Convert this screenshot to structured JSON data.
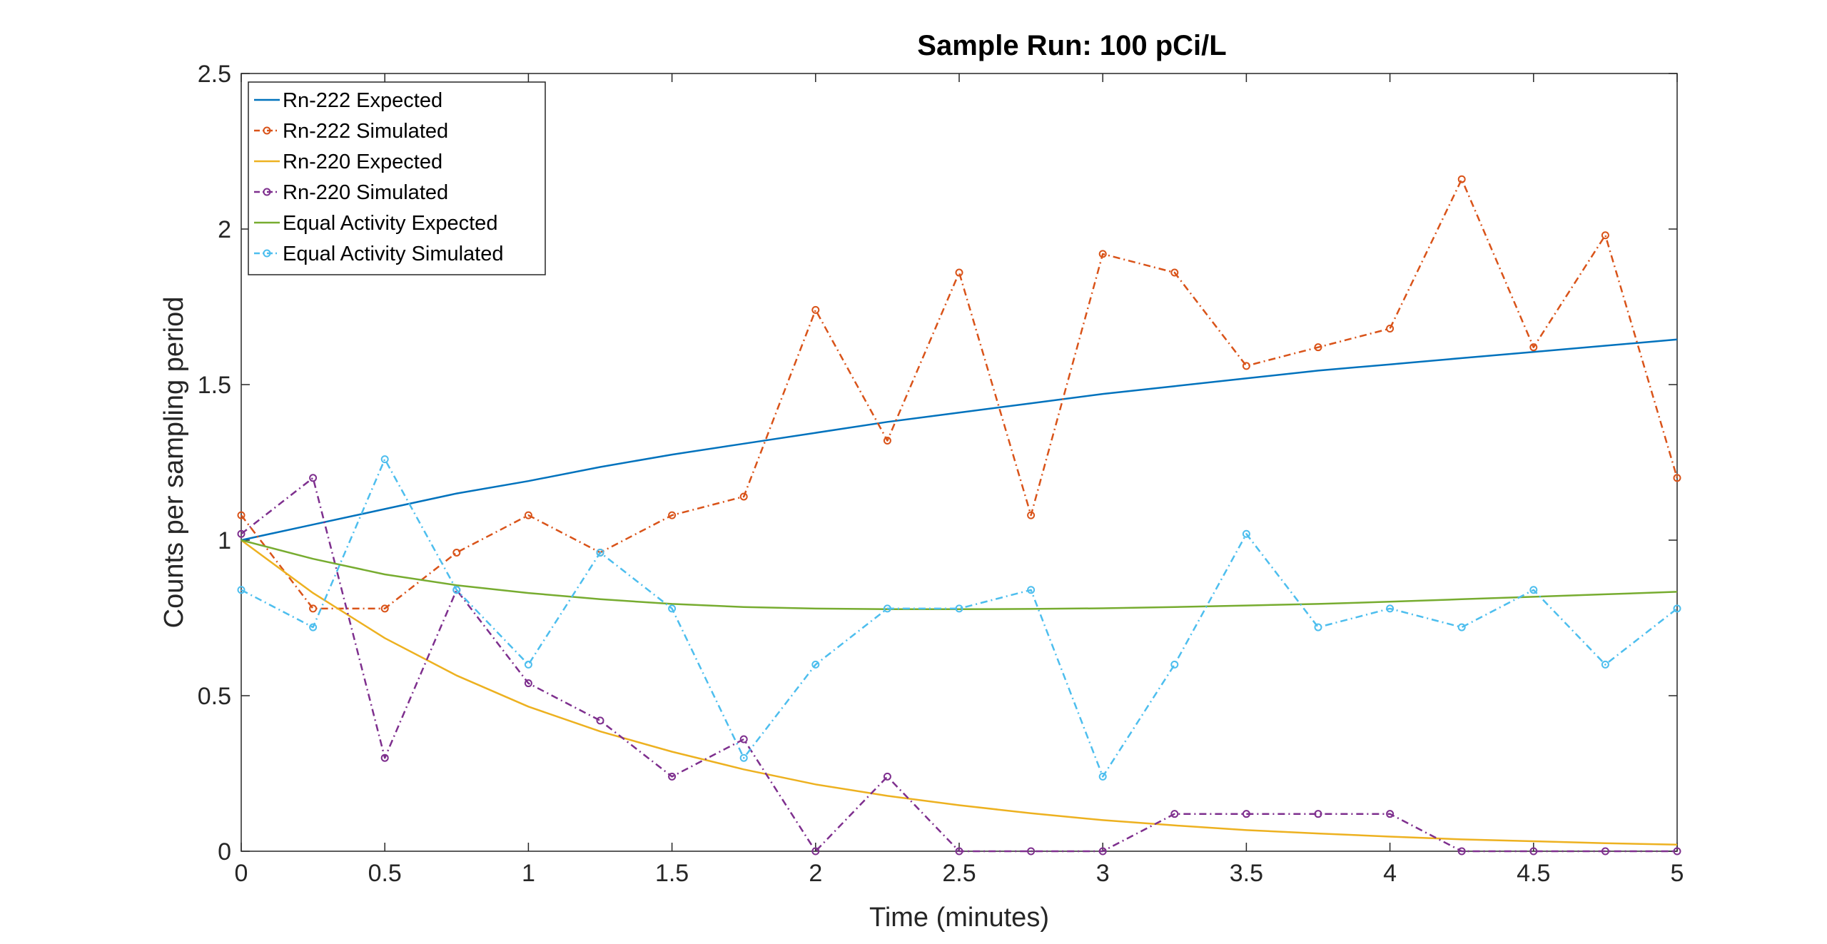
{
  "chart_data": {
    "type": "line",
    "title": "Sample Run: 100 pCi/L",
    "xlabel": "Time (minutes)",
    "ylabel": "Counts per sampling period",
    "xlim": [
      0,
      5
    ],
    "ylim": [
      0,
      2.5
    ],
    "xticks": [
      "0",
      "0.5",
      "1",
      "1.5",
      "2",
      "2.5",
      "3",
      "3.5",
      "4",
      "4.5",
      "5"
    ],
    "yticks": [
      "0",
      "0.5",
      "1",
      "1.5",
      "2",
      "2.5"
    ],
    "grid": false,
    "legend_position": "top-left",
    "x": [
      0,
      0.25,
      0.5,
      0.75,
      1,
      1.25,
      1.5,
      1.75,
      2,
      2.25,
      2.5,
      2.75,
      3,
      3.25,
      3.5,
      3.75,
      4,
      4.25,
      4.5,
      4.75,
      5
    ],
    "series": [
      {
        "name": "Rn-222 Expected",
        "color": "#0072BD",
        "style": "solid",
        "marker": false,
        "values": [
          1.0,
          1.05,
          1.1,
          1.15,
          1.19,
          1.235,
          1.275,
          1.31,
          1.345,
          1.38,
          1.41,
          1.44,
          1.47,
          1.495,
          1.52,
          1.545,
          1.565,
          1.585,
          1.605,
          1.625,
          1.645
        ]
      },
      {
        "name": "Rn-222 Simulated",
        "color": "#D95319",
        "style": "dashdot",
        "marker": true,
        "values": [
          1.08,
          0.78,
          0.78,
          0.96,
          1.08,
          0.96,
          1.08,
          1.14,
          1.74,
          1.32,
          1.86,
          1.08,
          1.92,
          1.86,
          1.56,
          1.62,
          1.68,
          2.16,
          1.62,
          1.98,
          1.2
        ]
      },
      {
        "name": "Rn-220 Expected",
        "color": "#EDB120",
        "style": "solid",
        "marker": false,
        "values": [
          1.0,
          0.83,
          0.685,
          0.565,
          0.465,
          0.385,
          0.32,
          0.263,
          0.215,
          0.178,
          0.148,
          0.122,
          0.1,
          0.083,
          0.068,
          0.057,
          0.047,
          0.038,
          0.032,
          0.026,
          0.021
        ]
      },
      {
        "name": "Rn-220 Simulated",
        "color": "#7E2F8E",
        "style": "dashdot",
        "marker": true,
        "values": [
          1.02,
          1.2,
          0.3,
          0.84,
          0.54,
          0.42,
          0.24,
          0.36,
          0.0,
          0.24,
          0.0,
          0.0,
          0.0,
          0.12,
          0.12,
          0.12,
          0.12,
          0.0,
          0.0,
          0.0,
          0.0
        ]
      },
      {
        "name": "Equal Activity Expected",
        "color": "#77AC30",
        "style": "solid",
        "marker": false,
        "values": [
          1.0,
          0.94,
          0.89,
          0.855,
          0.83,
          0.81,
          0.795,
          0.785,
          0.78,
          0.778,
          0.778,
          0.779,
          0.781,
          0.785,
          0.79,
          0.795,
          0.802,
          0.81,
          0.818,
          0.826,
          0.834
        ]
      },
      {
        "name": "Equal Activity Simulated",
        "color": "#4DBEEE",
        "style": "dashdot",
        "marker": true,
        "values": [
          0.84,
          0.72,
          1.26,
          0.84,
          0.6,
          0.96,
          0.78,
          0.3,
          0.6,
          0.78,
          0.78,
          0.84,
          0.24,
          0.6,
          1.02,
          0.72,
          0.78,
          0.72,
          0.84,
          0.6,
          0.78
        ]
      }
    ]
  }
}
